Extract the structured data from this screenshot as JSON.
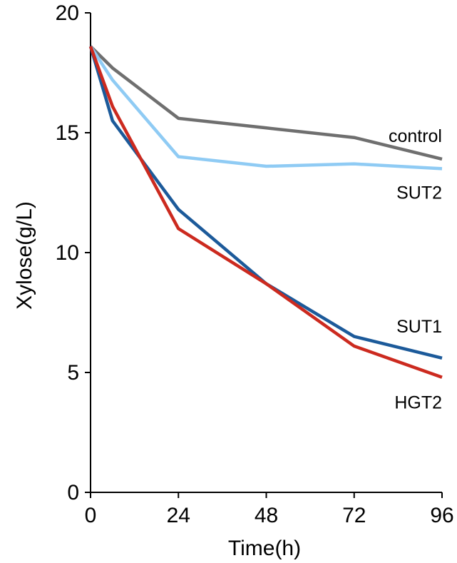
{
  "chart_data": {
    "type": "line",
    "title": "",
    "xlabel": "Time(h)",
    "ylabel": "Xylose(g/L)",
    "xlim": [
      0,
      96
    ],
    "ylim": [
      0,
      20
    ],
    "x_ticks": [
      0,
      24,
      48,
      72,
      96
    ],
    "y_ticks": [
      0,
      5,
      10,
      15,
      20
    ],
    "grid": false,
    "legend": "labels at line ends (right side)",
    "series": [
      {
        "name": "control",
        "color": "#6f6f6f",
        "x": [
          0,
          6,
          24,
          48,
          72,
          96
        ],
        "y": [
          18.6,
          17.7,
          15.6,
          15.2,
          14.8,
          13.9
        ]
      },
      {
        "name": "SUT2",
        "color": "#8fcbf4",
        "x": [
          0,
          6,
          24,
          48,
          72,
          96
        ],
        "y": [
          18.6,
          17.2,
          14.0,
          13.6,
          13.7,
          13.5
        ]
      },
      {
        "name": "SUT1",
        "color": "#1c5a9a",
        "x": [
          0,
          6,
          24,
          48,
          72,
          96
        ],
        "y": [
          18.6,
          15.5,
          11.8,
          8.7,
          6.5,
          5.6
        ]
      },
      {
        "name": "HGT2",
        "color": "#cc2a1f",
        "x": [
          0,
          6,
          24,
          48,
          72,
          96
        ],
        "y": [
          18.6,
          16.1,
          11.0,
          8.7,
          6.1,
          4.8
        ]
      }
    ]
  }
}
